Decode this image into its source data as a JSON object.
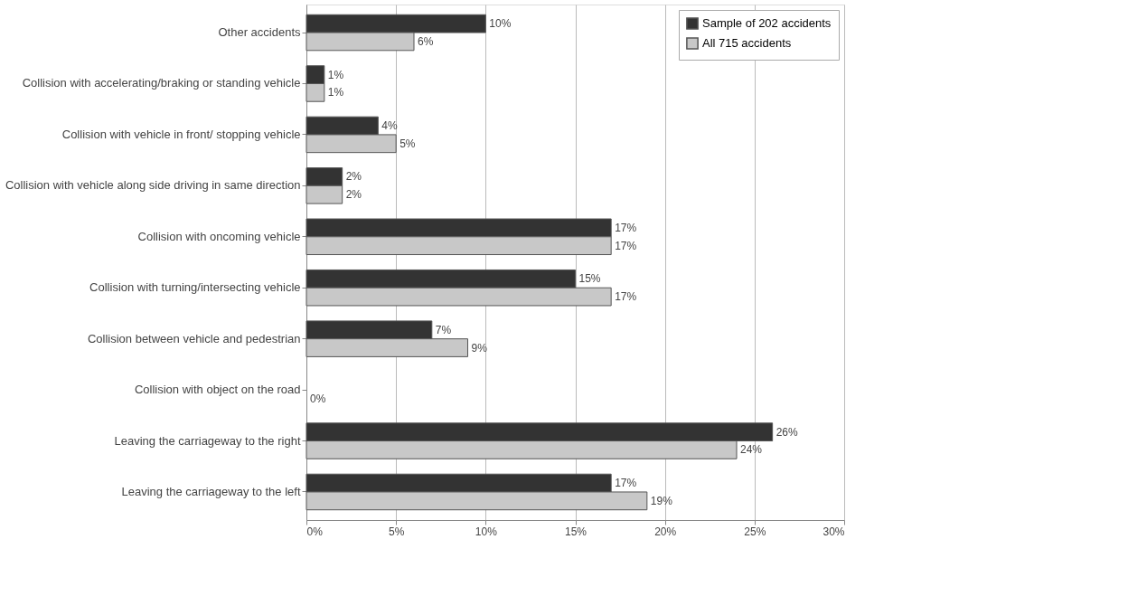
{
  "chart_data": {
    "type": "bar",
    "orientation": "horizontal",
    "categories": [
      "Other accidents",
      "Collision with accelerating/braking or standing vehicle",
      "Collision with vehicle in front/ stopping vehicle",
      "Collision with vehicle along side driving in same direction",
      "Collision with oncoming vehicle",
      "Collision with turning/intersecting vehicle",
      "Collision between vehicle and pedestrian",
      "Collision with object on the road",
      "Leaving the carriageway to the right",
      "Leaving the carriageway to the left"
    ],
    "series": [
      {
        "name": "Sample of 202 accidents",
        "color": "#333333",
        "values": [
          10,
          1,
          4,
          2,
          17,
          15,
          7,
          0,
          26,
          17
        ],
        "value_labels": [
          "10%",
          "1%",
          "4%",
          "2%",
          "17%",
          "15%",
          "7%",
          null,
          "26%",
          "17%"
        ]
      },
      {
        "name": "All 715 accidents",
        "color": "#c8c8c8",
        "values": [
          6,
          1,
          5,
          2,
          17,
          17,
          9,
          0,
          24,
          19
        ],
        "value_labels": [
          "6%",
          "1%",
          "5%",
          "2%",
          "17%",
          "17%",
          "9%",
          "0%",
          "24%",
          "19%"
        ]
      }
    ],
    "xlim": [
      0,
      30
    ],
    "xticks": [
      {
        "value": 0,
        "label": "0%"
      },
      {
        "value": 5,
        "label": "5%"
      },
      {
        "value": 10,
        "label": "10%"
      },
      {
        "value": 15,
        "label": "15%"
      },
      {
        "value": 20,
        "label": "20%"
      },
      {
        "value": 25,
        "label": "25%"
      },
      {
        "value": 30,
        "label": "30%"
      }
    ],
    "grid": "x",
    "legend": "top right"
  }
}
